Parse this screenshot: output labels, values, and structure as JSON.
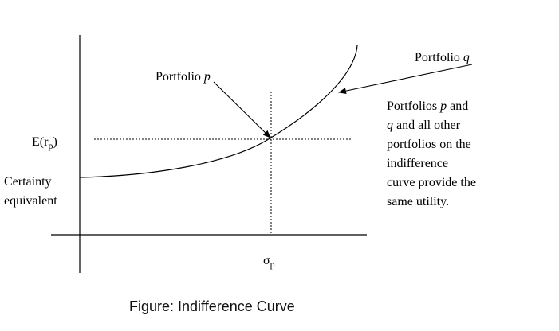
{
  "labels": {
    "expected_return": "E(r",
    "expected_return_sub": "p",
    "expected_return_close": ")",
    "certainty_line1": "Certainty",
    "certainty_line2": "equivalent",
    "sigma": "σ",
    "sigma_sub": "p",
    "portfolio_p_prefix": "Portfolio ",
    "portfolio_p_letter": "p",
    "portfolio_q_prefix": "Portfolio ",
    "portfolio_q_letter": "q"
  },
  "note": {
    "line1_prefix": "Portfolios ",
    "line1_italic": "p",
    "line1_suffix": " and",
    "line2_italic": "q",
    "line2_suffix": " and all other",
    "line3": "portfolios on the",
    "line4": "indifference",
    "line5": "curve provide the",
    "line6": "same utility."
  },
  "caption": "Figure: Indifference Curve"
}
